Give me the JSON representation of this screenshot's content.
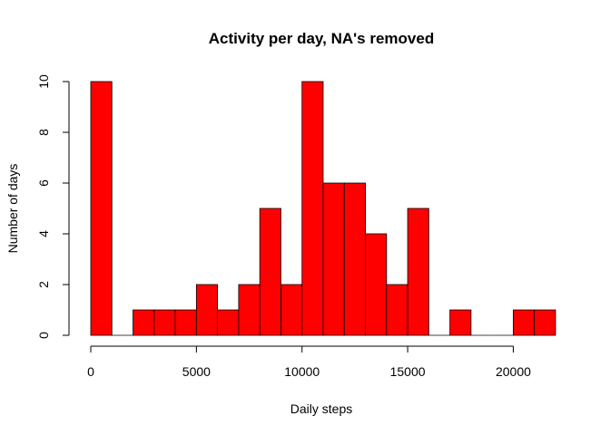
{
  "chart_data": {
    "type": "bar",
    "title": "Activity per day, NA's removed",
    "xlabel": "Daily steps",
    "ylabel": "Number of days",
    "bin_width": 1000,
    "bins": [
      {
        "start": 0,
        "end": 1000,
        "count": 10
      },
      {
        "start": 1000,
        "end": 2000,
        "count": 0
      },
      {
        "start": 2000,
        "end": 3000,
        "count": 1
      },
      {
        "start": 3000,
        "end": 4000,
        "count": 1
      },
      {
        "start": 4000,
        "end": 5000,
        "count": 1
      },
      {
        "start": 5000,
        "end": 6000,
        "count": 2
      },
      {
        "start": 6000,
        "end": 7000,
        "count": 1
      },
      {
        "start": 7000,
        "end": 8000,
        "count": 2
      },
      {
        "start": 8000,
        "end": 9000,
        "count": 5
      },
      {
        "start": 9000,
        "end": 10000,
        "count": 2
      },
      {
        "start": 10000,
        "end": 11000,
        "count": 10
      },
      {
        "start": 11000,
        "end": 12000,
        "count": 6
      },
      {
        "start": 12000,
        "end": 13000,
        "count": 6
      },
      {
        "start": 13000,
        "end": 14000,
        "count": 4
      },
      {
        "start": 14000,
        "end": 15000,
        "count": 2
      },
      {
        "start": 15000,
        "end": 16000,
        "count": 5
      },
      {
        "start": 16000,
        "end": 17000,
        "count": 0
      },
      {
        "start": 17000,
        "end": 18000,
        "count": 1
      },
      {
        "start": 18000,
        "end": 19000,
        "count": 0
      },
      {
        "start": 19000,
        "end": 20000,
        "count": 0
      },
      {
        "start": 20000,
        "end": 21000,
        "count": 1
      },
      {
        "start": 21000,
        "end": 22000,
        "count": 1
      }
    ],
    "xlim": [
      0,
      22000
    ],
    "ylim": [
      0,
      10
    ],
    "x_ticks": [
      0,
      5000,
      10000,
      15000,
      20000
    ],
    "y_ticks": [
      0,
      2,
      4,
      6,
      8,
      10
    ],
    "bar_color": "#ff0000",
    "grid": false,
    "legend": "none"
  }
}
